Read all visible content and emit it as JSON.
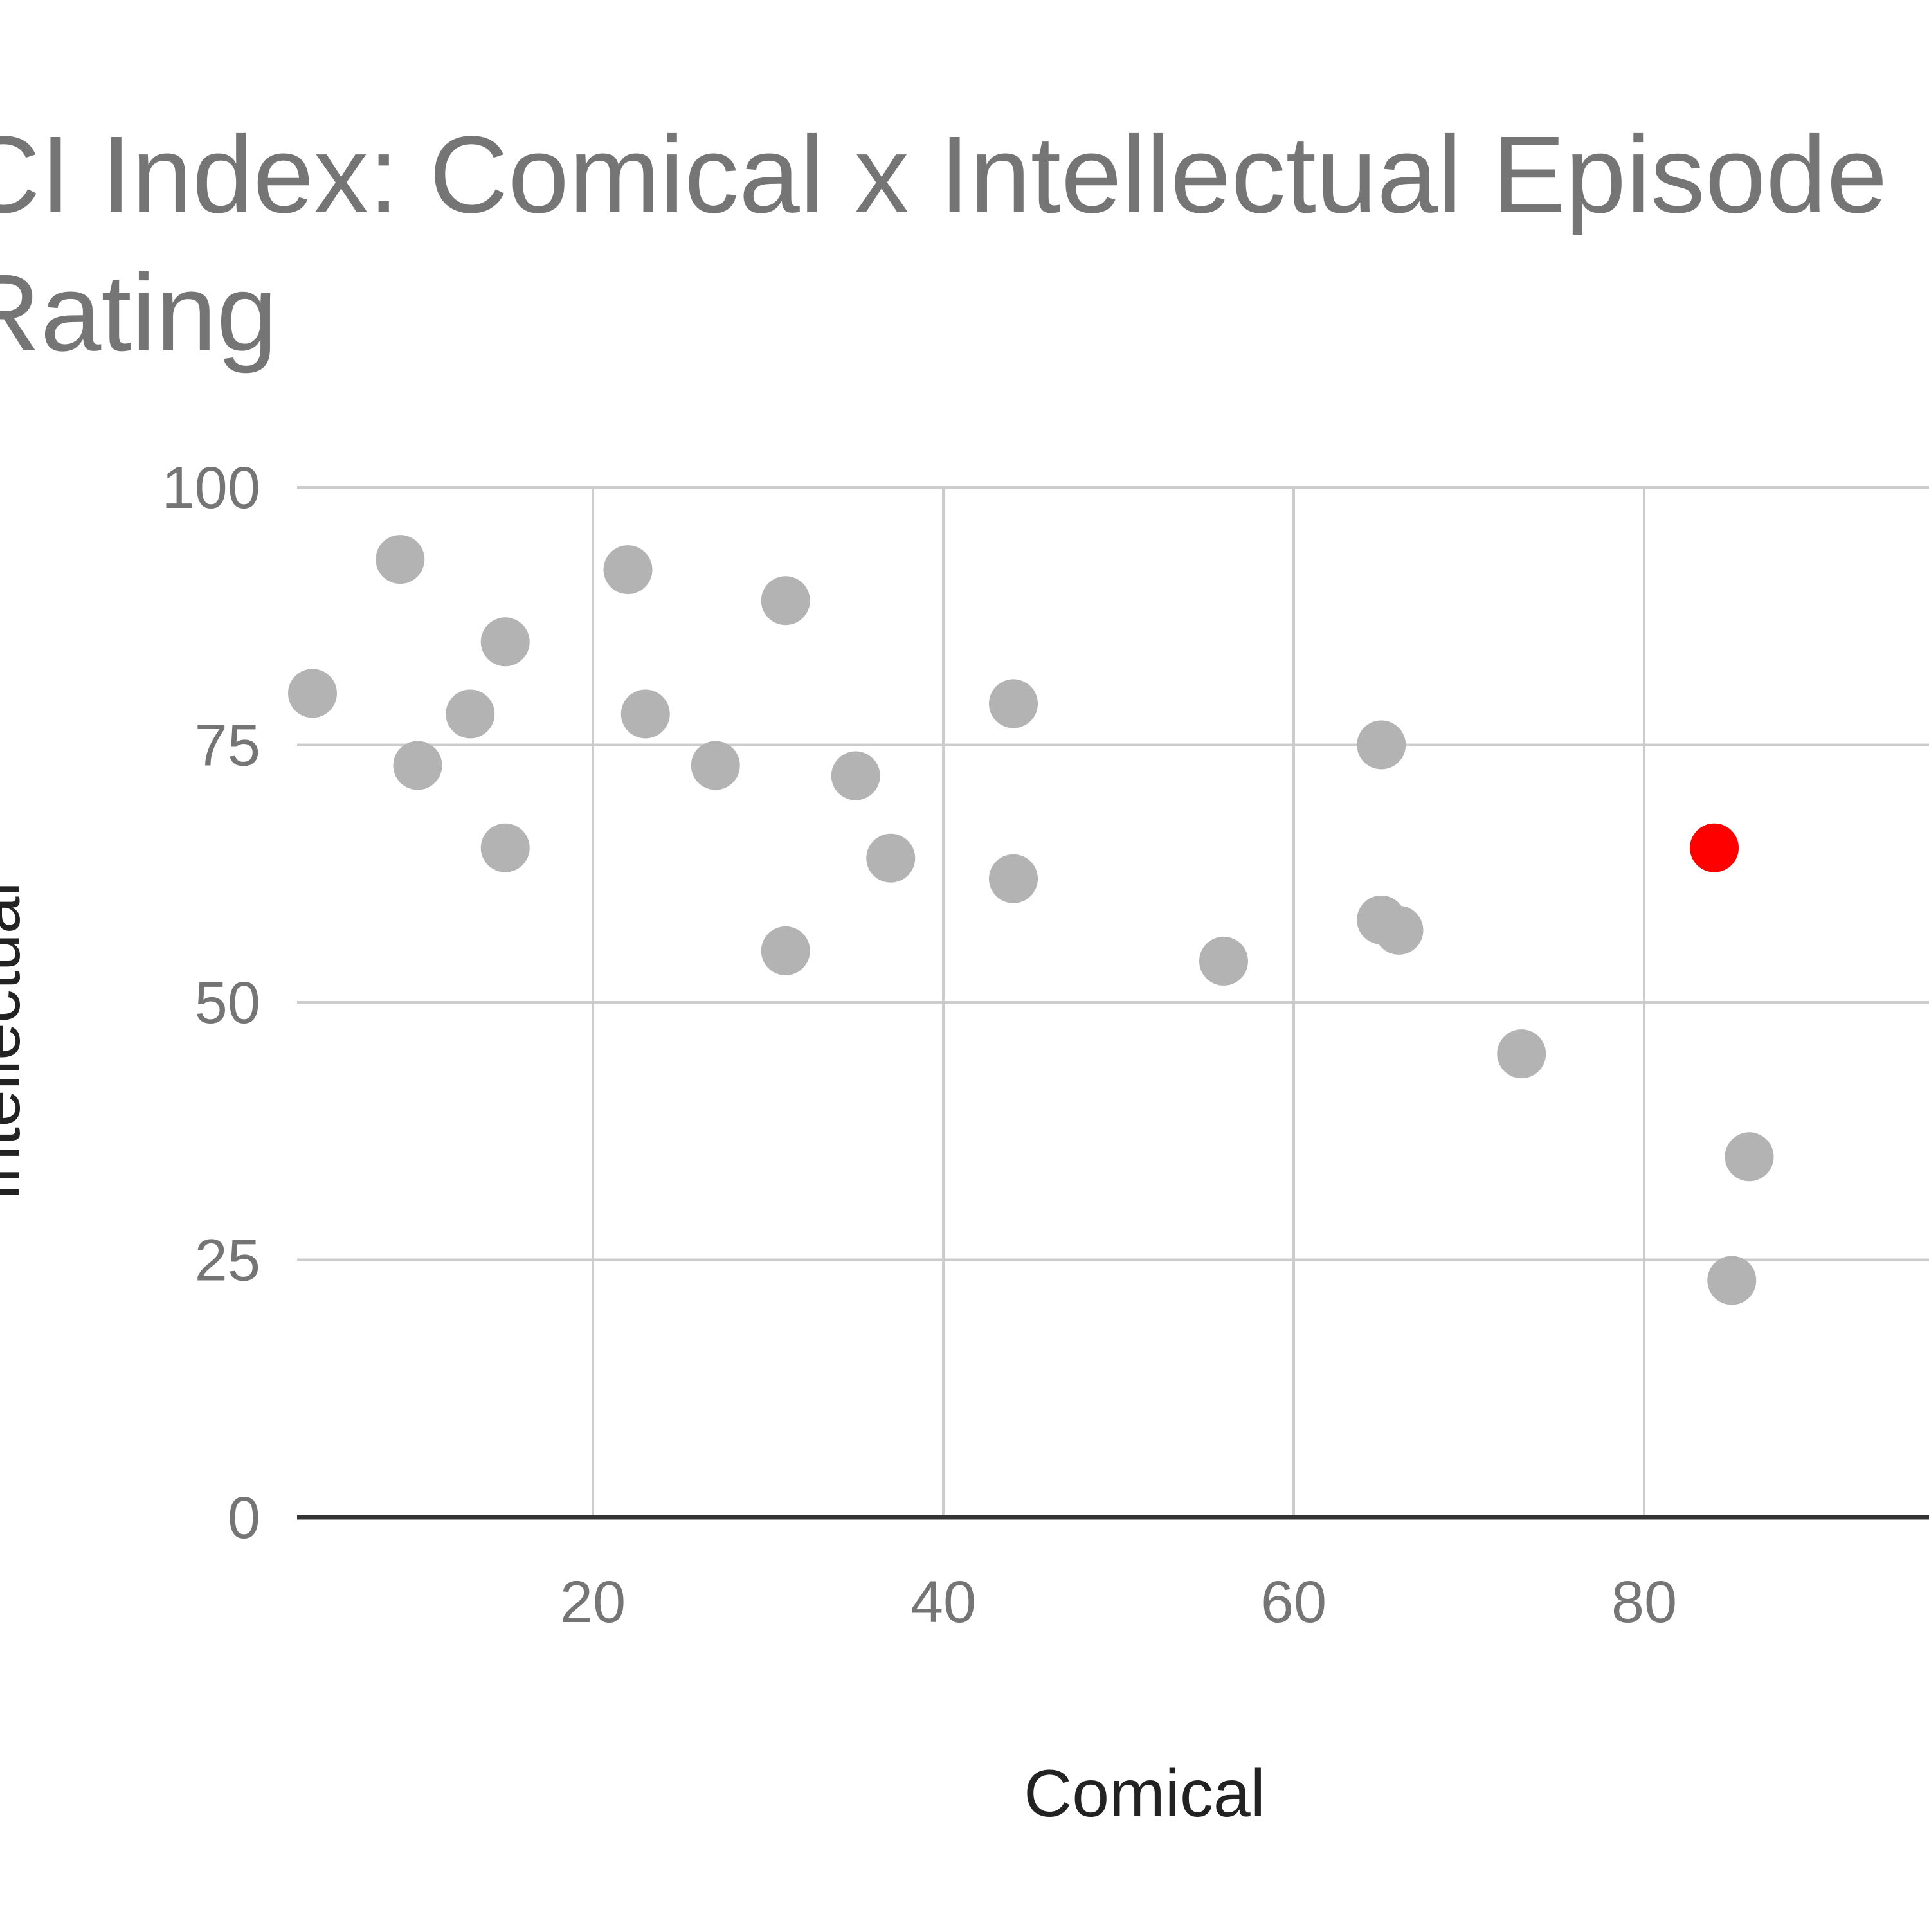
{
  "chart_data": {
    "type": "scatter",
    "title": "CI Index: Comical x Intellectual Episode Rating",
    "xlabel": "Comical",
    "ylabel": "Intellectual",
    "xlim": [
      3,
      95
    ],
    "ylim": [
      0,
      100
    ],
    "x_ticks": [
      20,
      40,
      60,
      80
    ],
    "y_ticks": [
      0,
      25,
      50,
      75,
      100
    ],
    "grid": true,
    "legend": "none",
    "colors": {
      "default_point": "#b3b3b3",
      "highlight_point": "#ff0000",
      "gridline": "#cccccc",
      "baseline": "#333333",
      "text": "#757575"
    },
    "points": [
      {
        "x": 4,
        "y": 80
      },
      {
        "x": 9,
        "y": 93
      },
      {
        "x": 10,
        "y": 73
      },
      {
        "x": 13,
        "y": 78
      },
      {
        "x": 15,
        "y": 85
      },
      {
        "x": 15,
        "y": 65
      },
      {
        "x": 22,
        "y": 92
      },
      {
        "x": 23,
        "y": 78
      },
      {
        "x": 27,
        "y": 73
      },
      {
        "x": 31,
        "y": 89
      },
      {
        "x": 31,
        "y": 55
      },
      {
        "x": 35,
        "y": 72
      },
      {
        "x": 37,
        "y": 64
      },
      {
        "x": 44,
        "y": 79
      },
      {
        "x": 44,
        "y": 62
      },
      {
        "x": 56,
        "y": 54
      },
      {
        "x": 65,
        "y": 75
      },
      {
        "x": 65,
        "y": 58
      },
      {
        "x": 66,
        "y": 57
      },
      {
        "x": 73,
        "y": 45
      },
      {
        "x": 84,
        "y": 65,
        "highlight": true
      },
      {
        "x": 86,
        "y": 35
      },
      {
        "x": 85,
        "y": 23
      }
    ]
  }
}
